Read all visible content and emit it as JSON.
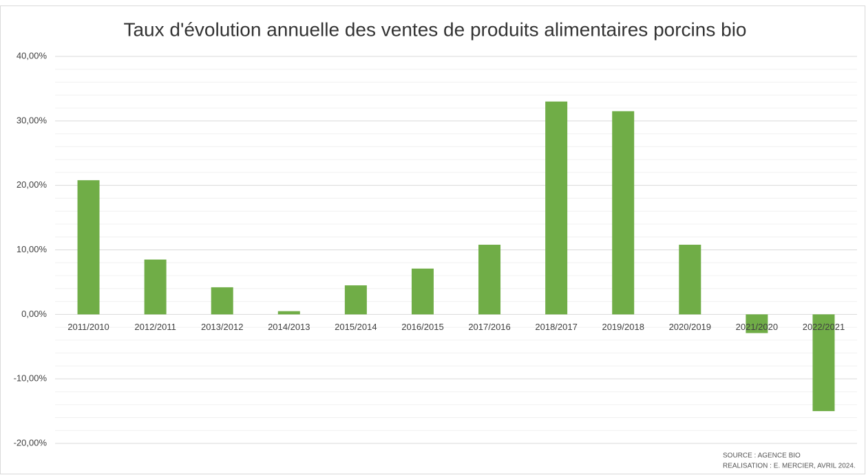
{
  "chart_data": {
    "type": "bar",
    "title": "Taux d'évolution annuelle des ventes de produits alimentaires porcins bio",
    "categories": [
      "2011/2010",
      "2012/2011",
      "2013/2012",
      "2014/2013",
      "2015/2014",
      "2016/2015",
      "2017/2016",
      "2018/2017",
      "2019/2018",
      "2020/2019",
      "2021/2020",
      "2022/2021"
    ],
    "values": [
      20.8,
      8.5,
      4.2,
      0.5,
      4.5,
      7.1,
      10.8,
      33.0,
      31.5,
      10.8,
      -2.9,
      -15.0
    ],
    "color": "#70ad47",
    "ylim": [
      -20,
      40
    ],
    "yticks": [
      {
        "value": -20,
        "label": "-20,00%"
      },
      {
        "value": -10,
        "label": "-10,00%"
      },
      {
        "value": 0,
        "label": "0,00%"
      },
      {
        "value": 10,
        "label": "10,00%"
      },
      {
        "value": 20,
        "label": "20,00%"
      },
      {
        "value": 30,
        "label": "30,00%"
      },
      {
        "value": 40,
        "label": "40,00%"
      }
    ],
    "minor_yticks": [
      -18,
      -16,
      -14,
      -12,
      -8,
      -6,
      -4,
      -2,
      2,
      4,
      6,
      8,
      12,
      14,
      16,
      18,
      22,
      24,
      26,
      28,
      32,
      34,
      36,
      38
    ],
    "grid": true,
    "annotations": [
      "SOURCE : AGENCE BIO",
      "REALISATION : E. MERCIER, AVRIL 2024."
    ]
  }
}
